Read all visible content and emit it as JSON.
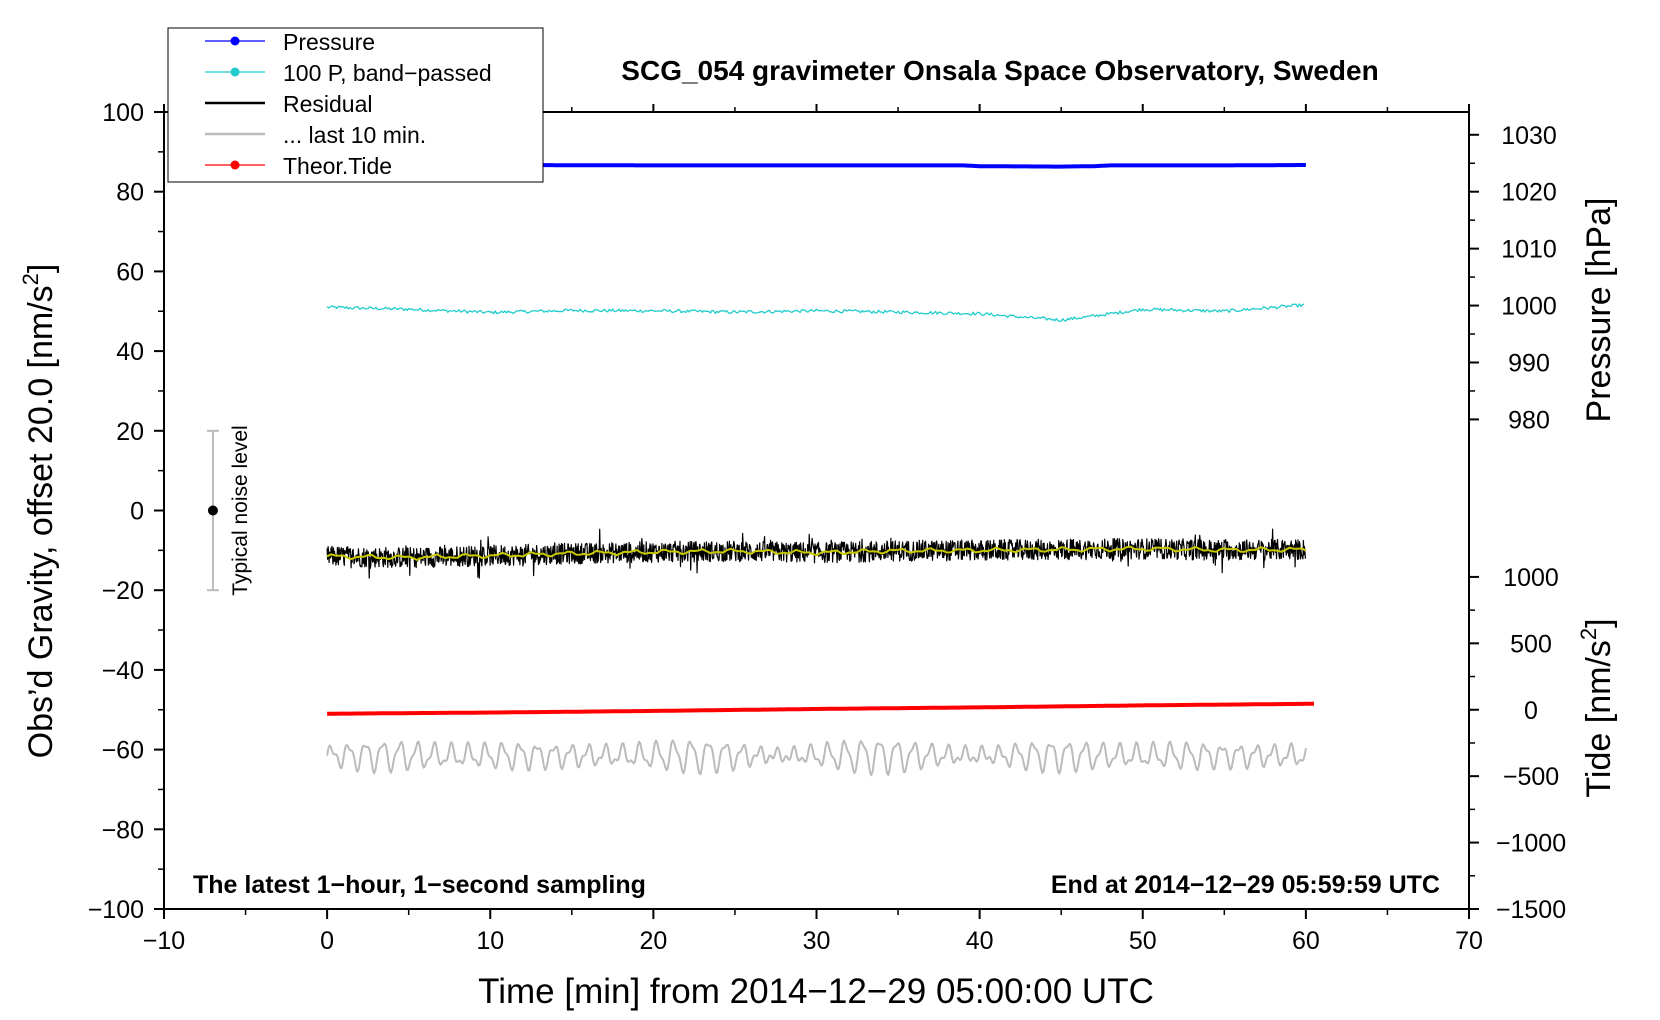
{
  "chart_data": {
    "type": "line",
    "title": "SCG_054 gravimeter Onsala Space Observatory, Sweden",
    "xlabel": "Time [min] from 2014−12−29 05:00:00 UTC",
    "ylabel_left": "Obs’d Gravity, offset 20.0 [nm/s",
    "ylabel_left_sup": "2",
    "ylabel_left_end": "]",
    "ylabel_pressure": "Pressure [hPa]",
    "ylabel_tide": "Tide [nm/s",
    "ylabel_tide_sup": "2",
    "ylabel_tide_end": "]",
    "xlim": [
      -10,
      70
    ],
    "ylim_left": [
      -100,
      100
    ],
    "x_ticks": [
      "−10",
      "0",
      "10",
      "20",
      "30",
      "40",
      "50",
      "60",
      "70"
    ],
    "x_tick_values": [
      -10,
      0,
      10,
      20,
      30,
      40,
      50,
      60,
      70
    ],
    "y_left_ticks": [
      "100",
      "80",
      "60",
      "40",
      "20",
      "0",
      "−20",
      "−40",
      "−60",
      "−80",
      "−100"
    ],
    "y_left_tick_values": [
      100,
      80,
      60,
      40,
      20,
      0,
      -20,
      -40,
      -60,
      -80,
      -100
    ],
    "pressure_ticks": [
      "1030",
      "1020",
      "1010",
      "1000",
      "990",
      "980"
    ],
    "pressure_tick_values": [
      1030,
      1020,
      1010,
      1000,
      990,
      980
    ],
    "pressure_axis_map": {
      "hPa_at_gravity_80": 1020,
      "hPa_at_gravity_20": 978
    },
    "tide_ticks": [
      "1000",
      "500",
      "0",
      "−500",
      "−1000",
      "−1500"
    ],
    "tide_tick_values": [
      1000,
      500,
      0,
      -500,
      -1000,
      -1500
    ],
    "tide_axis_map": {
      "tide_at_gravity_minus100": -1500,
      "tide_at_gravity_minus50": 0
    },
    "annotation_left": "The latest 1−hour, 1−second sampling",
    "annotation_right": "End at 2014−12−29 05:59:59 UTC",
    "noise_bar": {
      "label": "Typical noise level",
      "x": -7,
      "center": 0,
      "low": -20,
      "high": 20
    },
    "legend": [
      {
        "label": "Pressure",
        "color": "#0000ff",
        "marker": true
      },
      {
        "label": "100 P, band−passed",
        "color": "#22cccc",
        "marker": true
      },
      {
        "label": "Residual",
        "color": "#000000",
        "marker": false
      },
      {
        "label": "... last 10 min.",
        "color": "#bbbbbb",
        "marker": false
      },
      {
        "label": "Theor.Tide",
        "color": "#ff0000",
        "marker": true
      }
    ],
    "series": [
      {
        "name": "Pressure",
        "color": "#0000ff",
        "unit": "gravity-axis",
        "x": [
          0,
          10,
          20,
          30,
          39,
          40,
          45,
          47,
          48,
          55,
          60
        ],
        "y": [
          86.7,
          86.7,
          86.6,
          86.6,
          86.6,
          86.4,
          86.3,
          86.4,
          86.6,
          86.6,
          86.7
        ]
      },
      {
        "name": "100 P, band−passed",
        "color": "#22cccc",
        "unit": "gravity-axis",
        "x": [
          0,
          5,
          10,
          15,
          20,
          25,
          30,
          35,
          40,
          43,
          45,
          47,
          50,
          55,
          60
        ],
        "y": [
          51,
          50.5,
          49.7,
          50.2,
          50.1,
          49.8,
          50.1,
          49.8,
          49.4,
          48.4,
          47.8,
          48.8,
          50.5,
          50,
          51.6
        ]
      },
      {
        "name": "Residual",
        "color": "#000000",
        "unit": "gravity-axis",
        "x": [
          0,
          5,
          10,
          15,
          20,
          25,
          30,
          35,
          40,
          45,
          50,
          55,
          60
        ],
        "y": [
          -11.5,
          -11.8,
          -11.3,
          -10.8,
          -10.4,
          -10.2,
          -10.6,
          -10.1,
          -10,
          -9.8,
          -9.6,
          -9.9,
          -9.8
        ],
        "noise_amplitude": 3.5
      },
      {
        "name": "Residual smoothed",
        "color": "#c8c800",
        "unit": "gravity-axis",
        "x": [
          0,
          5,
          10,
          15,
          20,
          25,
          30,
          35,
          40,
          45,
          50,
          55,
          60
        ],
        "y": [
          -11.5,
          -11.8,
          -11.3,
          -10.8,
          -10.4,
          -10.2,
          -10.6,
          -10.1,
          -10,
          -9.8,
          -9.6,
          -9.9,
          -9.8
        ]
      },
      {
        "name": "... last 10 min.",
        "color": "#bbbbbb",
        "unit": "gravity-axis",
        "x": [
          0,
          60
        ],
        "y": [
          -61.5,
          -61.5
        ],
        "oscillation_amplitude": 3.5,
        "period_min": 1.05
      },
      {
        "name": "Theor.Tide",
        "color": "#ff0000",
        "unit": "gravity-axis",
        "x": [
          0,
          10,
          20,
          30,
          40,
          50,
          60.5
        ],
        "y": [
          -51,
          -50.7,
          -50.3,
          -49.8,
          -49.4,
          -48.9,
          -48.5
        ]
      }
    ]
  }
}
